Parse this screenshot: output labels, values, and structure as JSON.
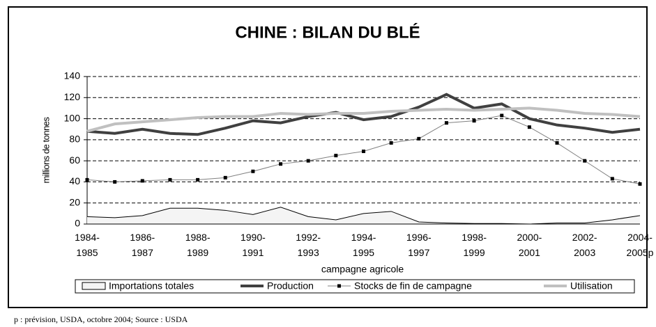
{
  "chart_data": {
    "type": "line",
    "title": "CHINE : BILAN DU BLÉ",
    "ylabel": "millions de tonnes",
    "xlabel": "campagne agricole",
    "footnote": "p : prévision, USDA, octobre 2004;  Source : USDA",
    "categories": [
      "1984-\n1985",
      null,
      "1986-\n1987",
      null,
      "1988-\n1989",
      null,
      "1990-\n1991",
      null,
      "1992-\n1993",
      null,
      "1994-\n1995",
      null,
      "1996-\n1997",
      null,
      "1998-\n1999",
      null,
      "2000-\n2001",
      null,
      "2002-\n2003",
      null,
      "2004-\n2005p"
    ],
    "ylim": [
      0,
      140
    ],
    "yticks": [
      0,
      20,
      40,
      60,
      80,
      100,
      120,
      140
    ],
    "grid": true,
    "legend": "bottom",
    "series": [
      {
        "name": "Importations totales",
        "style": "area",
        "color": "#f4f4f4",
        "values": [
          7,
          6,
          8,
          15,
          15,
          13,
          9,
          16,
          7,
          4,
          10,
          12,
          2,
          1,
          0.5,
          0.5,
          0,
          1,
          1,
          4,
          8
        ]
      },
      {
        "name": "Production",
        "style": "line",
        "color": "#404040",
        "values": [
          88,
          86,
          90,
          86,
          85,
          91,
          98,
          96,
          102,
          106,
          99,
          102,
          111,
          123,
          110,
          114,
          100,
          94,
          91,
          87,
          90
        ]
      },
      {
        "name": "Stocks de fin de campagne",
        "style": "marker-line",
        "color": "#808080",
        "values": [
          42,
          40,
          41,
          42,
          42,
          44,
          50,
          57,
          60,
          65,
          69,
          77,
          81,
          96,
          98,
          103,
          92,
          77,
          60,
          43,
          38
        ]
      },
      {
        "name": "Utilisation",
        "style": "line",
        "color": "#c0c0c0",
        "values": [
          88,
          95,
          97,
          99,
          101,
          102,
          102,
          105,
          104,
          105,
          105,
          107,
          108,
          109,
          108,
          109,
          110,
          108,
          105,
          104,
          102
        ]
      }
    ]
  }
}
